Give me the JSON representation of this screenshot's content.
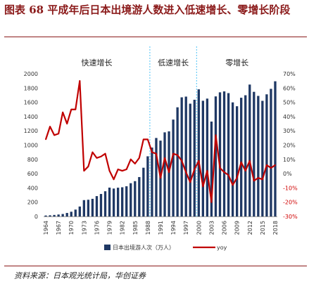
{
  "figure": {
    "title": "图表 68  平成年后日本出境游人数进入低速增长、零增长阶段",
    "source": "资料来源：日本观光统计局，华创证券"
  },
  "colors": {
    "bar": "#1f3864",
    "line": "#c00000",
    "divider": "#4fc3f7",
    "rule": "#8b1a1a"
  },
  "chart_data": {
    "type": "bar+line",
    "title": "",
    "categories": [
      "1964",
      "1965",
      "1966",
      "1967",
      "1968",
      "1969",
      "1970",
      "1971",
      "1972",
      "1973",
      "1974",
      "1975",
      "1976",
      "1977",
      "1978",
      "1979",
      "1980",
      "1981",
      "1982",
      "1983",
      "1984",
      "1985",
      "1986",
      "1987",
      "1988",
      "1989",
      "1990",
      "1991",
      "1992",
      "1993",
      "1994",
      "1995",
      "1996",
      "1997",
      "1998",
      "1999",
      "2000",
      "2001",
      "2002",
      "2003",
      "2004",
      "2005",
      "2006",
      "2007",
      "2008",
      "2009",
      "2010",
      "2011",
      "2012",
      "2013",
      "2014",
      "2015",
      "2016",
      "2017",
      "2018"
    ],
    "tick_labels": [
      "1964",
      "1967",
      "1970",
      "1973",
      "1976",
      "1979",
      "1982",
      "1985",
      "1988",
      "1991",
      "1994",
      "1997",
      "2000",
      "2003",
      "2006",
      "2009",
      "2012",
      "2015",
      "2018"
    ],
    "series": [
      {
        "name": "日本出境游人次（万人）",
        "type": "bar",
        "axis": "left",
        "values": [
          13,
          16,
          21,
          27,
          34,
          49,
          66,
          96,
          139,
          229,
          234,
          247,
          285,
          315,
          353,
          404,
          391,
          403,
          409,
          423,
          466,
          495,
          552,
          683,
          843,
          966,
          1100,
          1063,
          1179,
          1193,
          1358,
          1530,
          1670,
          1680,
          1581,
          1636,
          1782,
          1622,
          1652,
          1330,
          1683,
          1740,
          1753,
          1729,
          1599,
          1545,
          1664,
          1699,
          1849,
          1747,
          1690,
          1621,
          1712,
          1789,
          1895
        ]
      },
      {
        "name": "yoy",
        "type": "line",
        "axis": "right",
        "values": [
          24,
          33,
          27,
          28,
          43,
          35,
          45,
          45,
          65,
          2,
          5,
          15,
          11,
          12,
          14,
          2,
          -4,
          3,
          2,
          3,
          10,
          7,
          11,
          24,
          24,
          15,
          14,
          -3,
          11,
          1,
          14,
          13,
          9,
          1,
          -6,
          3,
          9,
          -9,
          2,
          -20,
          27,
          4,
          1,
          -1,
          -8,
          -3,
          8,
          2,
          9,
          -5,
          -3,
          -4,
          6,
          4,
          6
        ]
      }
    ],
    "left_axis": {
      "min": 0,
      "max": 2000,
      "step": 200,
      "tick_labels": [
        "0",
        "200",
        "400",
        "600",
        "800",
        "1000",
        "1200",
        "1400",
        "1600",
        "1800",
        "2000"
      ]
    },
    "right_axis": {
      "min": -30,
      "max": 70,
      "step": 10,
      "tick_labels": [
        "-30%",
        "-20%",
        "-10%",
        "0%",
        "10%",
        "20%",
        "30%",
        "40%",
        "50%",
        "60%",
        "70%"
      ]
    },
    "phase_labels": [
      {
        "label": "快速增长"
      },
      {
        "label": "低速增长"
      },
      {
        "label": "零增长"
      }
    ],
    "phase_dividers": [
      "1989",
      "2000"
    ],
    "legend": {
      "placement": "bottom",
      "entries": [
        "日本出境游人次（万人）",
        "yoy"
      ]
    },
    "grid": false
  }
}
